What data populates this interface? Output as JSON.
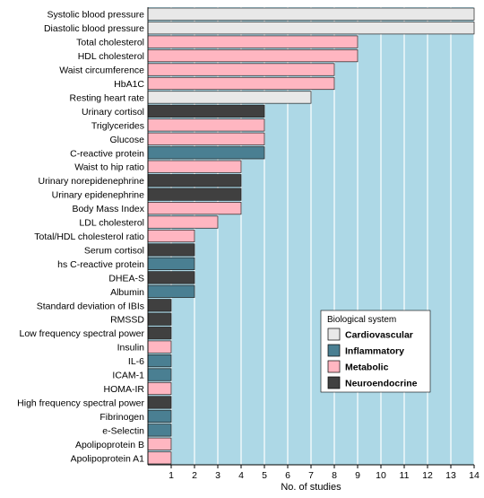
{
  "chart_data": {
    "type": "bar",
    "orientation": "horizontal",
    "title": "",
    "xlabel": "No. of studies",
    "ylabel": "",
    "xlim": [
      0,
      14
    ],
    "x_ticks": [
      "1",
      "2",
      "3",
      "4",
      "5",
      "6",
      "7",
      "8",
      "9",
      "10",
      "11",
      "12",
      "13",
      "14"
    ],
    "grid": "vertical",
    "plot_background": "#add8e6",
    "legend": {
      "title": "Biological system",
      "position": "bottom-right",
      "entries": [
        {
          "name": "Cardiovascular",
          "color": "#e8e8e8"
        },
        {
          "name": "Inflammatory",
          "color": "#4a7f92"
        },
        {
          "name": "Metabolic",
          "color": "#ffb6c1"
        },
        {
          "name": "Neuroendocrine",
          "color": "#404040"
        }
      ]
    },
    "categories": [
      "Systolic blood pressure",
      "Diastolic blood pressure",
      "Total cholesterol",
      "HDL cholesterol",
      "Waist circumference",
      "HbA1C",
      "Resting heart rate",
      "Urinary cortisol",
      "Triglycerides",
      "Glucose",
      "C-reactive protein",
      "Waist to hip ratio",
      "Urinary norepidenephrine",
      "Urinary epidenephrine",
      "Body Mass Index",
      "LDL cholesterol",
      "Total/HDL cholesterol ratio",
      "Serum cortisol",
      "hs C-reactive protein",
      "DHEA-S",
      "Albumin",
      "Standard deviation of IBIs",
      "RMSSD",
      "Low frequency spectral power",
      "Insulin",
      "IL-6",
      "ICAM-1",
      "HOMA-IR",
      "High frequency spectral power",
      "Fibrinogen",
      "e-Selectin",
      "Apolipoprotein B",
      "Apolipoprotein A1"
    ],
    "values": [
      14,
      14,
      9,
      9,
      8,
      8,
      7,
      5,
      5,
      5,
      5,
      4,
      4,
      4,
      4,
      3,
      2,
      2,
      2,
      2,
      2,
      1,
      1,
      1,
      1,
      1,
      1,
      1,
      1,
      1,
      1,
      1,
      1
    ],
    "groups": [
      "Cardiovascular",
      "Cardiovascular",
      "Metabolic",
      "Metabolic",
      "Metabolic",
      "Metabolic",
      "Cardiovascular",
      "Neuroendocrine",
      "Metabolic",
      "Metabolic",
      "Inflammatory",
      "Metabolic",
      "Neuroendocrine",
      "Neuroendocrine",
      "Metabolic",
      "Metabolic",
      "Metabolic",
      "Neuroendocrine",
      "Inflammatory",
      "Neuroendocrine",
      "Inflammatory",
      "Neuroendocrine",
      "Neuroendocrine",
      "Neuroendocrine",
      "Metabolic",
      "Inflammatory",
      "Inflammatory",
      "Metabolic",
      "Neuroendocrine",
      "Inflammatory",
      "Inflammatory",
      "Metabolic",
      "Metabolic"
    ]
  }
}
